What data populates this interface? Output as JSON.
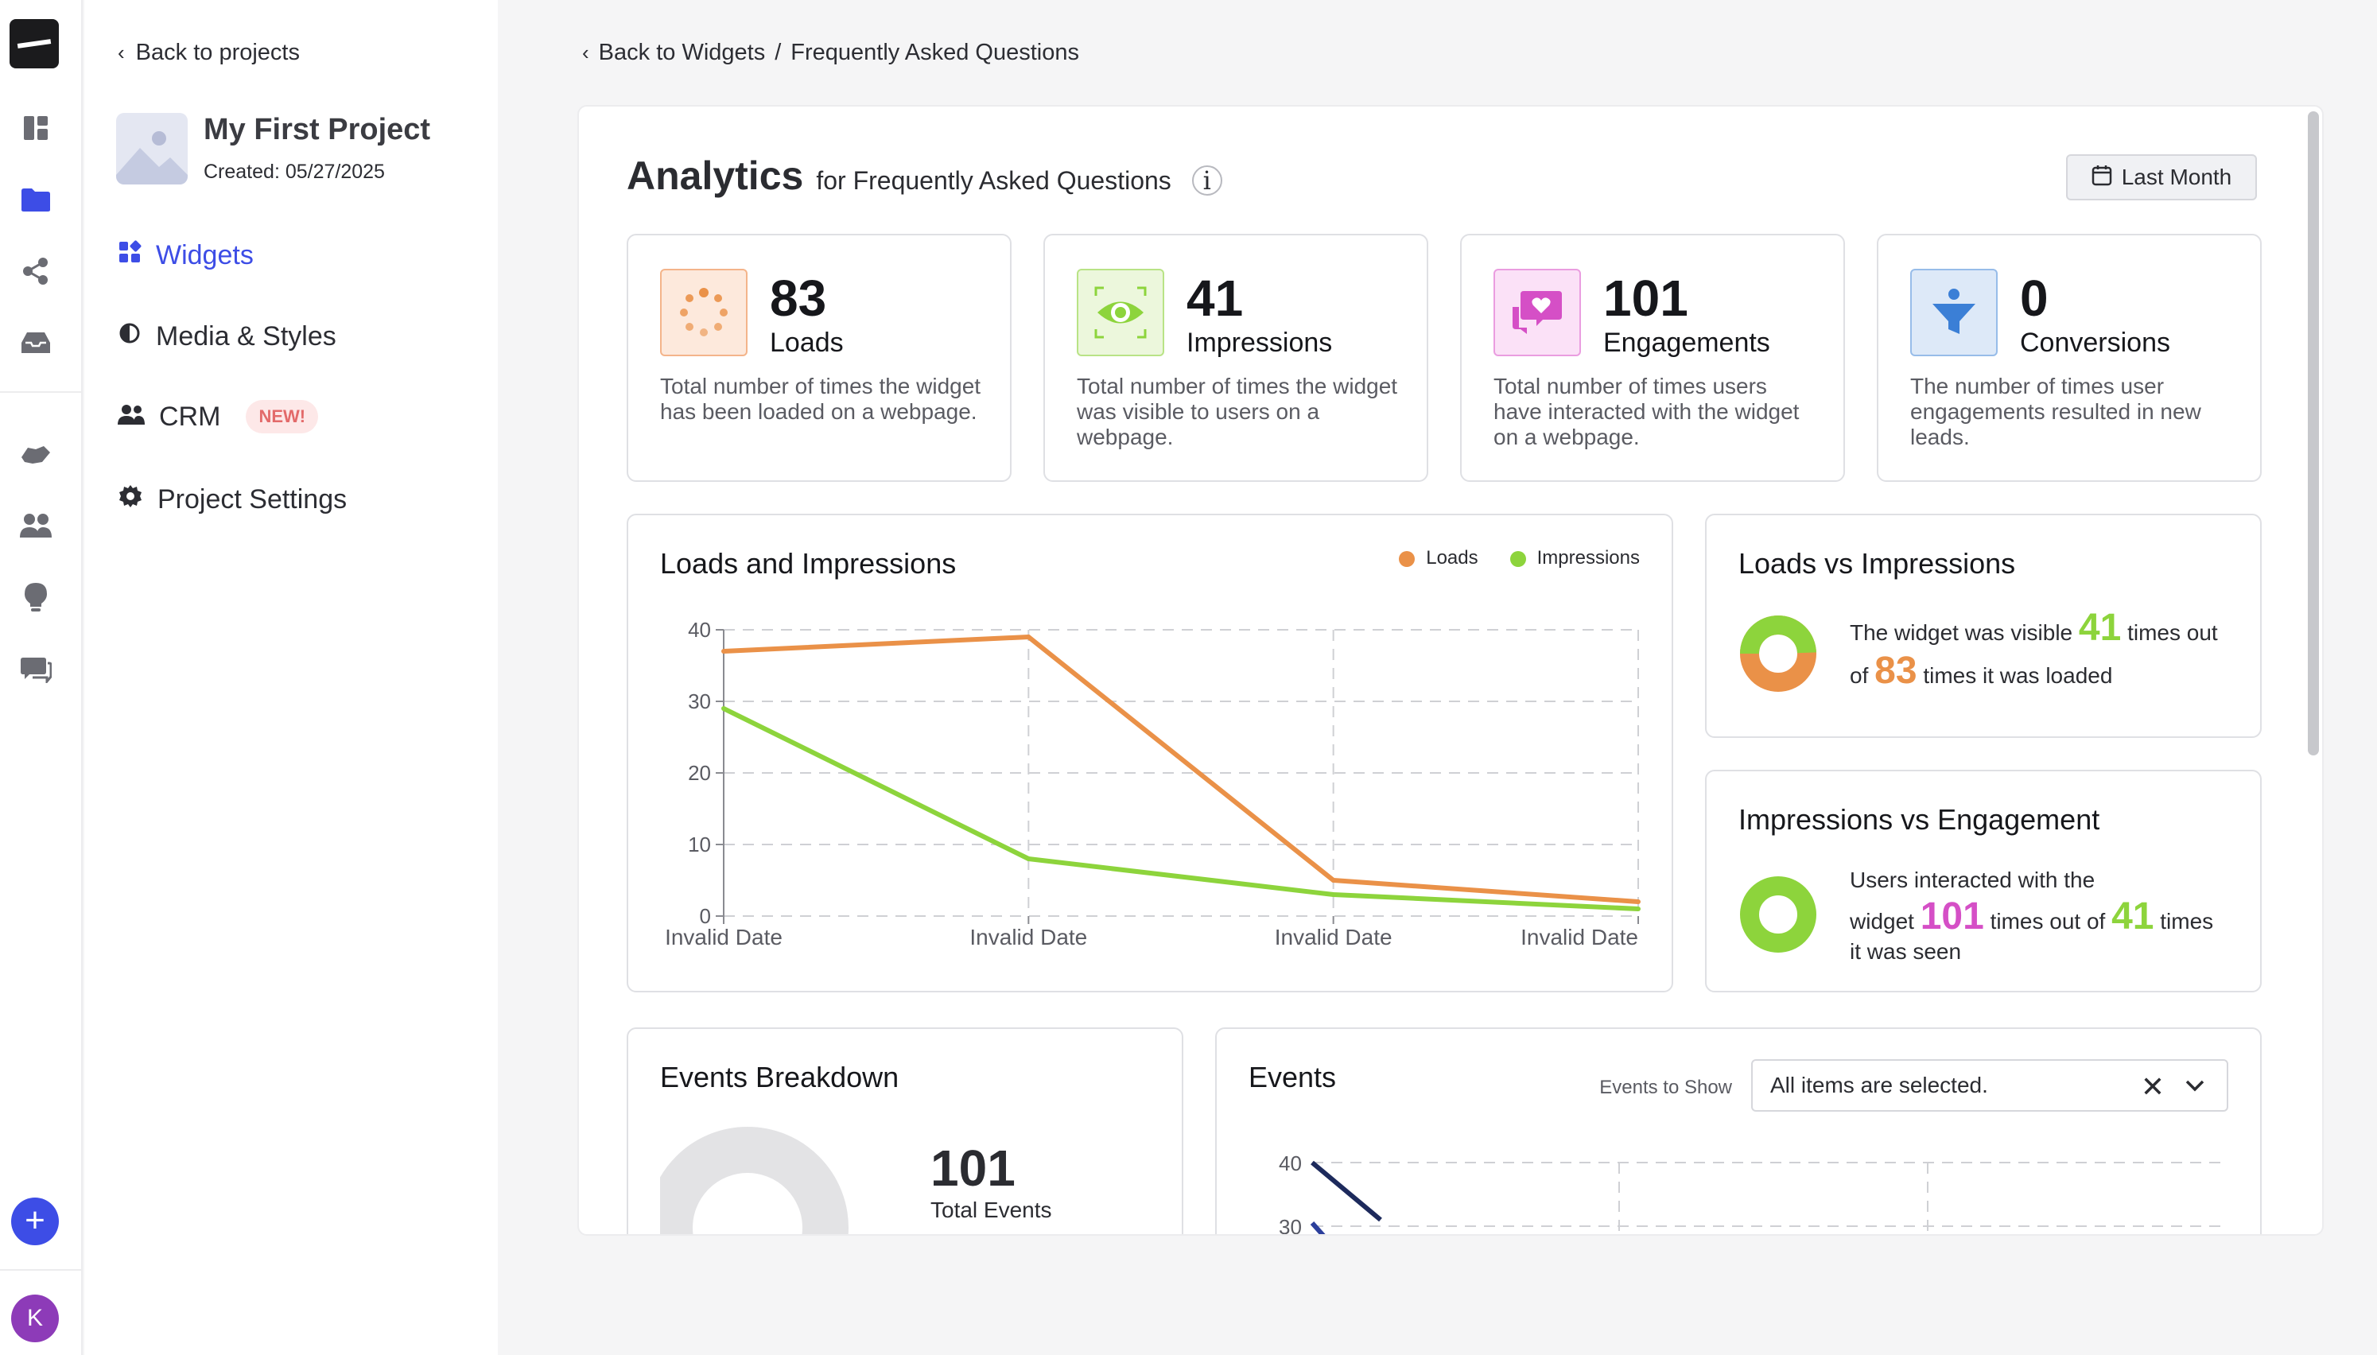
{
  "sidebar": {
    "back_label": "Back to projects",
    "project_name": "My First Project",
    "project_created": "Created: 05/27/2025",
    "nav": [
      {
        "label": "Widgets"
      },
      {
        "label": "Media & Styles"
      },
      {
        "label": "CRM",
        "badge": "NEW!"
      },
      {
        "label": "Project Settings"
      }
    ],
    "avatar_letter": "K"
  },
  "breadcrumb": {
    "back_label": "Back to Widgets",
    "separator": "/",
    "current": "Frequently Asked Questions"
  },
  "header": {
    "title": "Analytics",
    "subtitle": "for Frequently Asked Questions",
    "range_label": "Last Month"
  },
  "stats": [
    {
      "value": "83",
      "label": "Loads",
      "desc": "Total number of times the widget has been loaded on a webpage.",
      "color": "#ea9148"
    },
    {
      "value": "41",
      "label": "Impressions",
      "desc": "Total number of times the widget was visible to users on a webpage.",
      "color": "#8dd43c"
    },
    {
      "value": "101",
      "label": "Engagements",
      "desc": "Total number of times users have interacted with the widget on a webpage.",
      "color": "#d54fc6"
    },
    {
      "value": "0",
      "label": "Conversions",
      "desc": "The number of times user engagements resulted in new leads.",
      "color": "#3b7fd6"
    }
  ],
  "loads_impressions": {
    "title": "Loads and Impressions",
    "legend": [
      "Loads",
      "Impressions"
    ]
  },
  "chart_data": [
    {
      "type": "line",
      "title": "Loads and Impressions",
      "x": [
        "Invalid Date",
        "Invalid Date",
        "Invalid Date",
        "Invalid Date"
      ],
      "series": [
        {
          "name": "Loads",
          "values": [
            37,
            39,
            5,
            2
          ],
          "color": "#ea9148"
        },
        {
          "name": "Impressions",
          "values": [
            29,
            8,
            3,
            1
          ],
          "color": "#8dd43c"
        }
      ],
      "ylim": [
        0,
        40
      ],
      "yticks": [
        0,
        10,
        20,
        30,
        40
      ],
      "grid": true,
      "legend_position": "top-right"
    }
  ],
  "loads_vs_impressions": {
    "title": "Loads vs Impressions",
    "line1_a": "The widget was visible",
    "value_a": "41",
    "line1_b": "times out",
    "line2_a": "of",
    "value_b": "83",
    "line2_b": "times it was loaded",
    "ratio": 0.494
  },
  "impressions_vs_engagement": {
    "title": "Impressions vs Engagement",
    "line1": "Users interacted with the",
    "line2_a": "widget",
    "value_a": "101",
    "line2_b": "times out of",
    "value_b": "41",
    "line2_c": "times",
    "line3": "it was seen"
  },
  "events_breakdown": {
    "title": "Events Breakdown",
    "total": "101",
    "total_label": "Total Events"
  },
  "events": {
    "title": "Events",
    "filter_label": "Events to Show",
    "filter_value": "All items are selected.",
    "visible_ticks": [
      "40",
      "30"
    ]
  }
}
